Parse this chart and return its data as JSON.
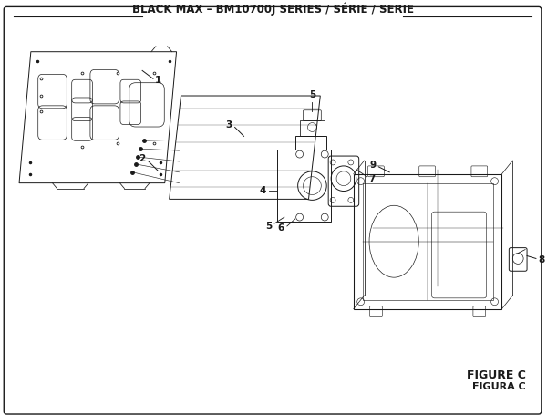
{
  "title": "BLACK MAX – BM10700J SERIES / SÉRIE / SERIE",
  "figure_label": "FIGURE C",
  "figura_label": "FIGURA C",
  "bg_color": "#ffffff",
  "line_color": "#1a1a1a",
  "title_fontsize": 8.5,
  "label_fontsize": 7.5,
  "figure_fontsize": 9
}
